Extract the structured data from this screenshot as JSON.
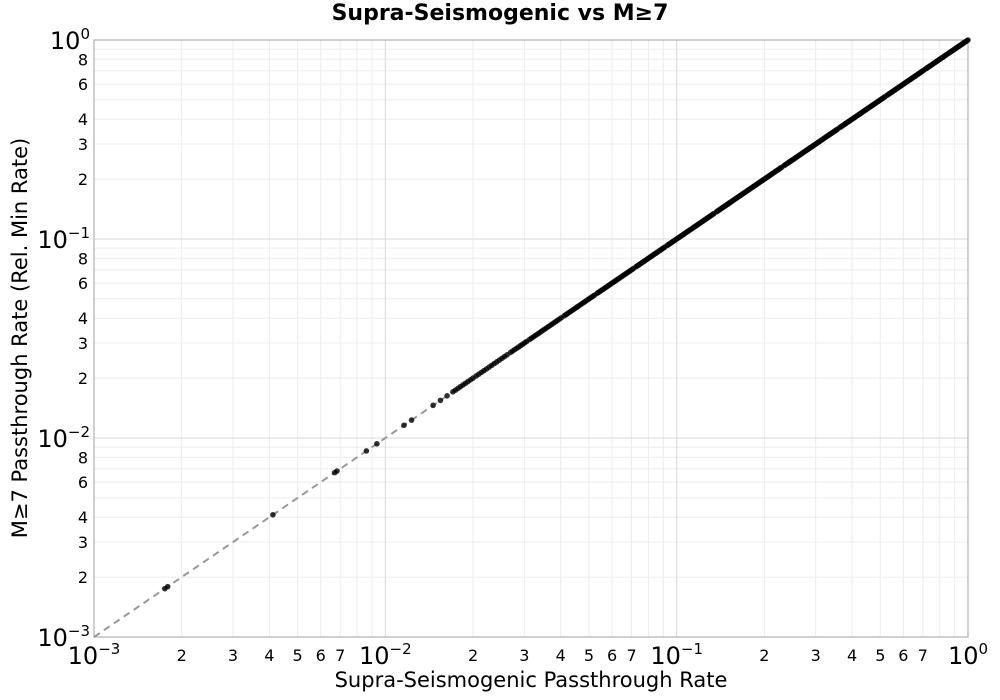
{
  "chart_data": {
    "type": "scatter",
    "title": "Supra-Seismogenic vs M≥7",
    "xlabel": "Supra-Seismogenic Passthrough Rate",
    "ylabel": "M≥7 Passthrough Rate (Rel. Min Rate)",
    "x_scale": "log",
    "y_scale": "log",
    "xlim": [
      0.001,
      1.0
    ],
    "ylim": [
      0.001,
      1.0
    ],
    "grid": true,
    "legend": false,
    "major_tick_exponents": [
      -3,
      -2,
      -1,
      0
    ],
    "x_minor_tick_labels": [
      2,
      3,
      4,
      5,
      6,
      7
    ],
    "y_minor_tick_labels": [
      8,
      6,
      4,
      3,
      2
    ],
    "minor_grid_multiples": [
      2,
      3,
      4,
      5,
      6,
      7,
      8,
      9
    ],
    "relation": "all points lie on the identity line y = x",
    "identity_line": {
      "color": "#999999",
      "dash": [
        7,
        5
      ],
      "width": 2
    },
    "marker": {
      "color": "#000000",
      "radius": 2.8,
      "opacity": 0.8
    },
    "points_log10": [
      -2.757,
      -2.747,
      -2.386,
      -2.174,
      -2.166,
      -2.065,
      -2.029,
      -1.936,
      -1.91,
      -1.836,
      -1.811,
      -1.788
    ],
    "dense_runs_log10": [
      {
        "from": -1.768,
        "to": -1.699,
        "count": 9
      },
      {
        "from": -1.688,
        "to": -1.582,
        "count": 13
      },
      {
        "from": -1.57,
        "to": -1.515,
        "count": 9
      },
      {
        "from": -1.505,
        "to": -1.396,
        "count": 18
      },
      {
        "from": -1.386,
        "to": -1.282,
        "count": 20
      },
      {
        "from": -1.273,
        "to": -1.148,
        "count": 28
      },
      {
        "from": -1.139,
        "to": -1.042,
        "count": 24
      },
      {
        "from": -1.033,
        "to": -0.872,
        "count": 42
      },
      {
        "from": -0.863,
        "to": -0.64,
        "count": 60
      },
      {
        "from": -0.631,
        "to": -0.448,
        "count": 50
      },
      {
        "from": -0.44,
        "to": -0.285,
        "count": 44
      },
      {
        "from": -0.277,
        "to": -0.153,
        "count": 36
      },
      {
        "from": -0.146,
        "to": -0.072,
        "count": 22
      },
      {
        "from": -0.066,
        "to": 0.0,
        "count": 20
      }
    ],
    "colors": {
      "grid_major": "#d9d9d9",
      "grid_minor": "#ececec",
      "spine": "#b0b0b0",
      "text": "#000000",
      "background": "#ffffff"
    }
  }
}
